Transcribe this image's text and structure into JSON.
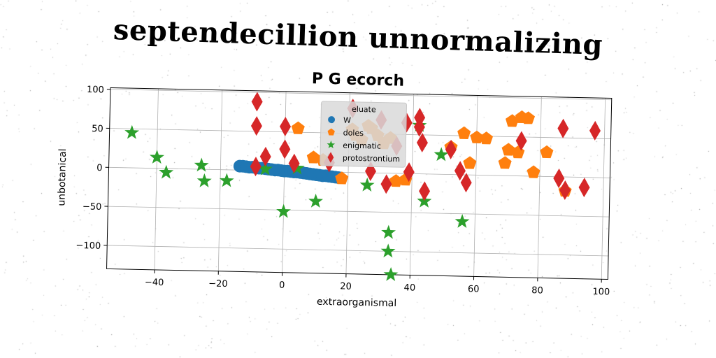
{
  "suptitle": "septendecillion unnormalizing",
  "chart_data": {
    "type": "scatter",
    "title": "P G ecorch",
    "xlabel": "extraorganismal",
    "ylabel": "unbotanical",
    "xlim": [
      -55,
      102
    ],
    "ylim": [
      -130,
      102
    ],
    "xticks": [
      -40,
      -20,
      0,
      20,
      40,
      60,
      80,
      100
    ],
    "yticks": [
      -100,
      -50,
      0,
      50,
      100
    ],
    "xtick_labels": [
      "−40",
      "−20",
      "0",
      "20",
      "40",
      "60",
      "80",
      "100"
    ],
    "ytick_labels": [
      "−100",
      "−50",
      "0",
      "50",
      "100"
    ],
    "grid": true,
    "legend": {
      "title": "eluate",
      "placement": "upper-center"
    },
    "series": [
      {
        "name": "W",
        "marker": "circle",
        "color": "#1f77b4",
        "points": [
          [
            -14,
            5
          ],
          [
            -13,
            5
          ],
          [
            -12,
            4.5
          ],
          [
            -11,
            4
          ],
          [
            -10,
            4
          ],
          [
            -9,
            3.5
          ],
          [
            -8,
            3
          ],
          [
            -7,
            3
          ],
          [
            -6,
            2.5
          ],
          [
            -5,
            2
          ],
          [
            -4,
            1.5
          ],
          [
            -3,
            1
          ],
          [
            -2,
            1
          ],
          [
            -1,
            0.5
          ],
          [
            0,
            0
          ],
          [
            1,
            0
          ],
          [
            2,
            -0.5
          ],
          [
            3,
            -1
          ],
          [
            4,
            -1
          ],
          [
            5,
            -1.5
          ],
          [
            6,
            -2
          ],
          [
            7,
            -2.5
          ],
          [
            8,
            -3
          ],
          [
            9,
            -3.5
          ],
          [
            10,
            -4
          ],
          [
            11,
            -4.5
          ],
          [
            12,
            -5
          ],
          [
            13,
            -5
          ],
          [
            14,
            -5.5
          ],
          [
            15,
            -6
          ],
          [
            16,
            -6.5
          ],
          [
            17,
            -7
          ]
        ]
      },
      {
        "name": "doles",
        "marker": "pentagon",
        "color": "#ff7f0e",
        "points": [
          [
            4,
            55
          ],
          [
            9,
            18
          ],
          [
            12,
            15
          ],
          [
            18,
            -8
          ],
          [
            21,
            55
          ],
          [
            22,
            48
          ],
          [
            24,
            42
          ],
          [
            26,
            60
          ],
          [
            27,
            57
          ],
          [
            29,
            48
          ],
          [
            31,
            38
          ],
          [
            33,
            45
          ],
          [
            35,
            -10
          ],
          [
            38,
            -8
          ],
          [
            52,
            35
          ],
          [
            56,
            53
          ],
          [
            58,
            15
          ],
          [
            60,
            48
          ],
          [
            63,
            47
          ],
          [
            69,
            16
          ],
          [
            70,
            33
          ],
          [
            71,
            70
          ],
          [
            73,
            30
          ],
          [
            74,
            75
          ],
          [
            76,
            74
          ],
          [
            78,
            5
          ],
          [
            82,
            31
          ],
          [
            88,
            -18
          ]
        ]
      },
      {
        "name": "enigmatic",
        "marker": "star",
        "color": "#2ca02c",
        "points": [
          [
            -48,
            45
          ],
          [
            -40,
            14
          ],
          [
            -37,
            -5
          ],
          [
            -26,
            5
          ],
          [
            -25,
            -15
          ],
          [
            -18,
            -14
          ],
          [
            -6,
            2
          ],
          [
            0,
            -52
          ],
          [
            4,
            4
          ],
          [
            10,
            -38
          ],
          [
            26,
            -16
          ],
          [
            33,
            -76
          ],
          [
            33,
            -100
          ],
          [
            34,
            -130
          ],
          [
            42,
            62
          ],
          [
            44,
            -35
          ],
          [
            49,
            25
          ],
          [
            56,
            -60
          ]
        ]
      },
      {
        "name": "protostrontium",
        "marker": "diamond",
        "color": "#d62728",
        "points": [
          [
            -9,
            88
          ],
          [
            -9,
            57
          ],
          [
            -9,
            5
          ],
          [
            -6,
            18
          ],
          [
            0,
            57
          ],
          [
            0,
            28
          ],
          [
            3,
            10
          ],
          [
            14,
            12
          ],
          [
            21,
            82
          ],
          [
            27,
            2
          ],
          [
            30,
            68
          ],
          [
            32,
            -14
          ],
          [
            35,
            35
          ],
          [
            38,
            65
          ],
          [
            39,
            2
          ],
          [
            42,
            72
          ],
          [
            42,
            60
          ],
          [
            43,
            40
          ],
          [
            44,
            -22
          ],
          [
            52,
            32
          ],
          [
            55,
            5
          ],
          [
            57,
            -10
          ],
          [
            74,
            45
          ],
          [
            86,
            -2
          ],
          [
            87,
            62
          ],
          [
            88,
            -17
          ],
          [
            94,
            -13
          ],
          [
            97,
            60
          ]
        ]
      }
    ]
  }
}
